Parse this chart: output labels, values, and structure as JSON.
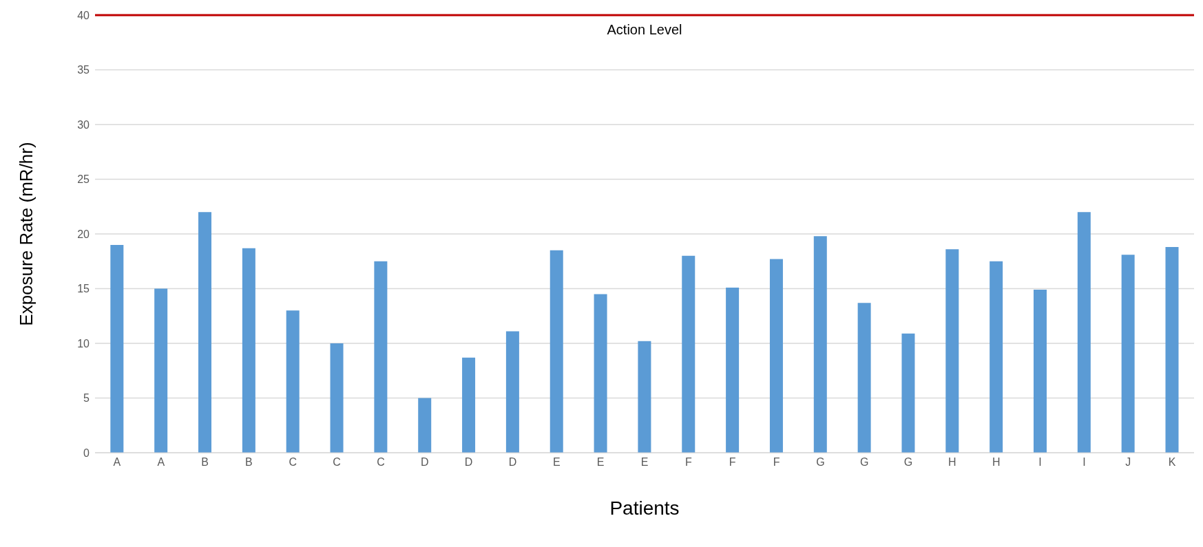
{
  "chart_data": {
    "type": "bar",
    "xlabel": "Patients",
    "ylabel": "Exposure Rate (mR/hr)",
    "categories": [
      "A",
      "A",
      "B",
      "B",
      "C",
      "C",
      "C",
      "D",
      "D",
      "D",
      "E",
      "E",
      "E",
      "F",
      "F",
      "F",
      "G",
      "G",
      "G",
      "H",
      "H",
      "I",
      "I",
      "J",
      "K"
    ],
    "values": [
      19,
      15,
      22,
      18.7,
      13,
      10,
      17.5,
      5,
      8.7,
      11.1,
      18.5,
      14.5,
      10.2,
      18,
      15.1,
      17.7,
      19.8,
      13.7,
      10.9,
      18.6,
      17.5,
      14.9,
      22,
      18.1,
      18.8
    ],
    "color": "#5b9bd5",
    "ylim": [
      0,
      40
    ],
    "yticks": [
      0,
      5,
      10,
      15,
      20,
      25,
      30,
      35,
      40
    ],
    "grid": "y",
    "ref_lines": [
      {
        "axis": "y",
        "value": 40,
        "label": "Action Level",
        "color": "#c00000"
      }
    ]
  }
}
